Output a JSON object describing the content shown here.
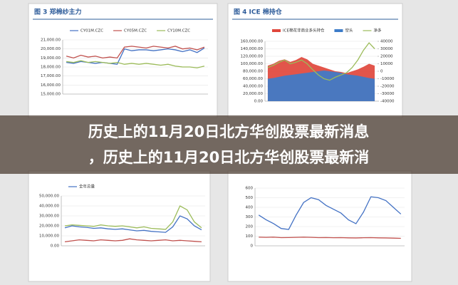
{
  "banner": {
    "line1": "历史上的11月20日北方华创股票最新消息",
    "line2": "，历史上的11月20日北方华创股票最新消"
  },
  "chart_data": [
    {
      "type": "line",
      "title": "图 3  郑棉纱主力",
      "ylim": [
        15000,
        21000
      ],
      "yticks": [
        {
          "value": 15000,
          "label": "15,000.00"
        },
        {
          "value": 16000,
          "label": "16,000.00"
        },
        {
          "value": 17000,
          "label": "17,000.00"
        },
        {
          "value": 18000,
          "label": "18,000.00"
        },
        {
          "value": 19000,
          "label": "19,000.00"
        },
        {
          "value": 20000,
          "label": "20,000.00"
        },
        {
          "value": 21000,
          "label": "21,000.00"
        }
      ],
      "series": [
        {
          "name": "CY01M.CZC",
          "color": "#4472c4",
          "values": [
            18500,
            18400,
            18600,
            18500,
            18400,
            18500,
            18400,
            18300,
            20000,
            19800,
            19900,
            19900,
            19800,
            19900,
            20000,
            19900,
            19700,
            19900,
            19600,
            20100
          ]
        },
        {
          "name": "CY05M.CZC",
          "color": "#c0504d",
          "values": [
            19200,
            19000,
            19300,
            19100,
            19200,
            19000,
            19100,
            19000,
            20200,
            20300,
            20200,
            20100,
            20300,
            20200,
            20100,
            20300,
            20000,
            20100,
            19900,
            20200
          ]
        },
        {
          "name": "CY10M.CZC",
          "color": "#9bbb59",
          "values": [
            18600,
            18500,
            18700,
            18500,
            18600,
            18500,
            18400,
            18500,
            18300,
            18400,
            18300,
            18400,
            18300,
            18200,
            18300,
            18100,
            18000,
            18000,
            17900,
            18100
          ]
        }
      ]
    },
    {
      "type": "area",
      "title": "图 4  ICE 棉持仓",
      "ylim": [
        0,
        160000
      ],
      "yticks": [
        {
          "value": 0,
          "label": "0.00"
        },
        {
          "value": 20000,
          "label": "20,000.00"
        },
        {
          "value": 40000,
          "label": "40,000.00"
        },
        {
          "value": 60000,
          "label": "60,000.00"
        },
        {
          "value": 80000,
          "label": "80,000.00"
        },
        {
          "value": 100000,
          "label": "100,000.00"
        },
        {
          "value": 120000,
          "label": "120,000.00"
        },
        {
          "value": 140000,
          "label": "140,000.00"
        },
        {
          "value": 160000,
          "label": "160,000.00"
        }
      ],
      "y2lim": [
        -40000,
        40000
      ],
      "y2ticks": [
        -40000,
        -30000,
        -20000,
        -10000,
        0,
        10000,
        20000,
        30000,
        40000
      ],
      "series": [
        {
          "name": "ICE棉花非商业多头持仓",
          "color": "#e0473c",
          "values": [
            95000,
            100000,
            108000,
            112000,
            105000,
            110000,
            118000,
            112000,
            100000,
            95000,
            90000,
            85000,
            80000,
            78000,
            75000,
            80000,
            85000,
            92000,
            100000,
            95000
          ]
        },
        {
          "name": "空头",
          "color": "#3d7cc9",
          "values": [
            60000,
            62000,
            65000,
            68000,
            70000,
            72000,
            74000,
            76000,
            78000,
            80000,
            82000,
            80000,
            78000,
            76000,
            72000,
            70000,
            68000,
            65000,
            62000,
            60000
          ]
        },
        {
          "name": "净多",
          "color": "#9bbb59",
          "axis": "y2",
          "values": [
            5000,
            8000,
            12000,
            15000,
            10000,
            12000,
            15000,
            10000,
            2000,
            -5000,
            -10000,
            -12000,
            -8000,
            -5000,
            -2000,
            5000,
            15000,
            28000,
            38000,
            30000
          ]
        }
      ]
    },
    {
      "type": "line",
      "ylim": [
        0,
        50000
      ],
      "yticks": [
        {
          "value": 0,
          "label": "0.00"
        },
        {
          "value": 10000,
          "label": "10,000.00"
        },
        {
          "value": 20000,
          "label": "20,000.00"
        },
        {
          "value": 30000,
          "label": "30,000.00"
        },
        {
          "value": 40000,
          "label": "40,000.00"
        },
        {
          "value": 50000,
          "label": "50,000.00"
        }
      ],
      "series": [
        {
          "name": "全年总量",
          "color": "#4472c4",
          "values": [
            18000,
            20000,
            19000,
            18500,
            17500,
            18000,
            17000,
            16500,
            17000,
            16000,
            15000,
            15500,
            14500,
            14000,
            13500,
            19000,
            30000,
            27000,
            20000,
            16000
          ]
        },
        {
          "color": "#9bbb59",
          "values": [
            20000,
            21000,
            20500,
            20000,
            19500,
            21000,
            20000,
            19500,
            20000,
            19000,
            18000,
            19000,
            17500,
            17000,
            16500,
            24000,
            40000,
            36000,
            24000,
            18000
          ]
        },
        {
          "color": "#c0504d",
          "values": [
            4000,
            5000,
            6000,
            5500,
            5000,
            6000,
            5500,
            5000,
            5500,
            7000,
            6000,
            5500,
            5000,
            5500,
            6000,
            5000,
            5500,
            5000,
            4500,
            4000
          ]
        }
      ]
    },
    {
      "type": "line",
      "ylim": [
        0,
        600
      ],
      "yticks": [
        0,
        100,
        200,
        300,
        400,
        500,
        600
      ],
      "series": [
        {
          "color": "#4472c4",
          "values": [
            320,
            270,
            230,
            180,
            170,
            320,
            450,
            500,
            480,
            420,
            380,
            340,
            270,
            230,
            350,
            510,
            500,
            470,
            400,
            330
          ]
        },
        {
          "color": "#c0504d",
          "values": [
            90,
            88,
            90,
            85,
            86,
            88,
            90,
            88,
            85,
            86,
            84,
            85,
            83,
            82,
            84,
            85,
            83,
            82,
            80,
            78
          ]
        }
      ]
    }
  ]
}
